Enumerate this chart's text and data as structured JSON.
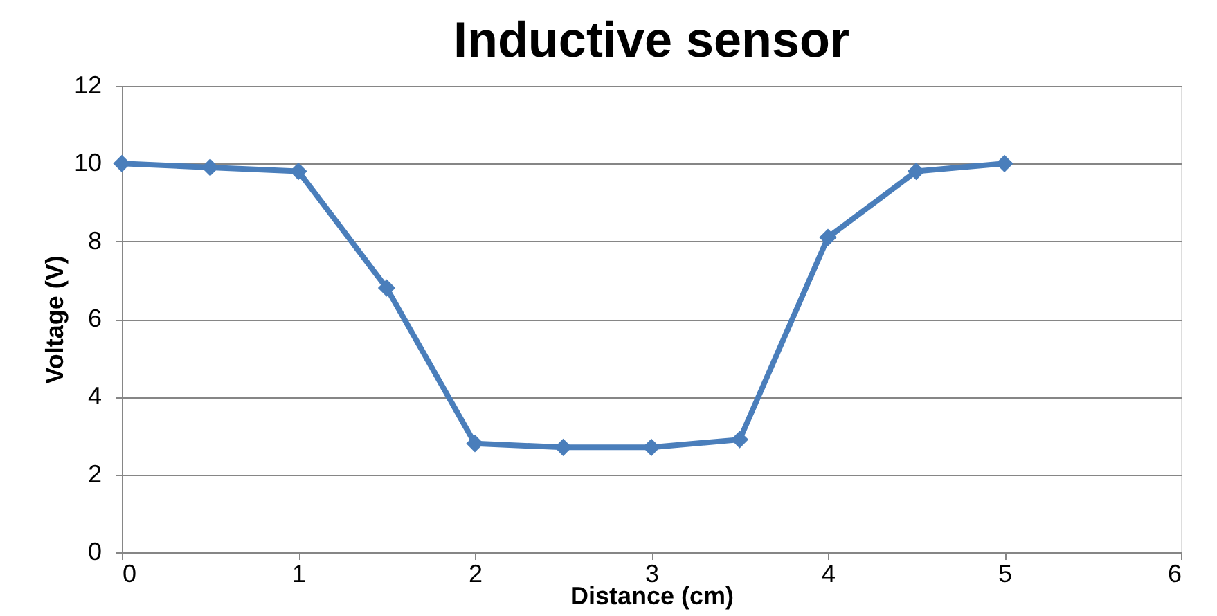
{
  "chart_data": {
    "type": "line",
    "title": "Inductive sensor",
    "xlabel": "Distance (cm)",
    "ylabel": "Voltage (V)",
    "x": [
      0,
      0.5,
      1,
      1.5,
      2,
      2.5,
      3,
      3.5,
      4,
      4.5,
      5
    ],
    "series": [
      {
        "color": "#4a7ebb",
        "values": [
          10,
          9.9,
          9.8,
          6.8,
          2.8,
          2.7,
          2.7,
          2.9,
          8.1,
          9.8,
          10
        ]
      }
    ],
    "xlim": [
      0,
      6
    ],
    "xticks": [
      0,
      1,
      2,
      3,
      4,
      5,
      6
    ],
    "ylim": [
      0,
      12
    ],
    "yticks": [
      0,
      2,
      4,
      6,
      8,
      10,
      12
    ],
    "grid": "y",
    "marker": "diamond",
    "line_style": "solid"
  }
}
